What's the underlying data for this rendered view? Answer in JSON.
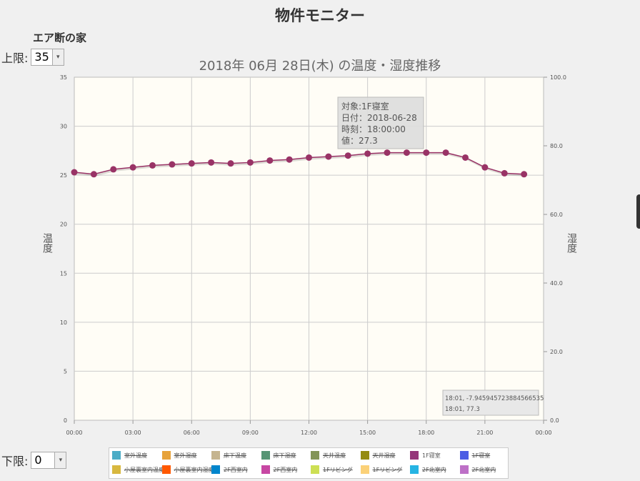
{
  "app_title": "物件モニター",
  "house_name": "エア断の家",
  "upper_limit": {
    "label": "上限:",
    "value": "35"
  },
  "lower_limit": {
    "label": "下限:",
    "value": "0"
  },
  "chart_data": {
    "type": "line",
    "title": "2018年 06月 28日(木) の温度・湿度推移",
    "ylabel_left": "温度",
    "ylabel_right": "湿度",
    "x_ticks": [
      "00:00",
      "03:00",
      "06:00",
      "09:00",
      "12:00",
      "15:00",
      "18:00",
      "21:00",
      "00:00"
    ],
    "y_left_ticks": [
      "0",
      "5",
      "10",
      "15",
      "20",
      "25",
      "30",
      "35"
    ],
    "y_right_ticks": [
      "0.0",
      "20.0",
      "40.0",
      "60.0",
      "80.0",
      "100.0"
    ],
    "ylim_left": [
      0,
      35
    ],
    "ylim_right": [
      0,
      100
    ],
    "xlim_hours": [
      0,
      24
    ],
    "grid": true,
    "series": [
      {
        "name": "1F寝室",
        "color": "#993366",
        "x": [
          0,
          1,
          2,
          3,
          4,
          5,
          6,
          7,
          8,
          9,
          10,
          11,
          12,
          13,
          14,
          15,
          16,
          17,
          18,
          19,
          20,
          21,
          22,
          23
        ],
        "values": [
          25.3,
          25.1,
          25.6,
          25.8,
          26.0,
          26.1,
          26.2,
          26.3,
          26.2,
          26.3,
          26.5,
          26.6,
          26.8,
          26.9,
          27.0,
          27.2,
          27.3,
          27.3,
          27.3,
          27.3,
          26.8,
          25.8,
          25.2,
          25.1
        ]
      }
    ],
    "tooltip": {
      "line1": "対象:1F寝室",
      "line2": "日付：2018-06-28",
      "line3": "時刻：18:00:00",
      "line4": "値：27.3"
    },
    "cursor_box": {
      "line1": "18:01, -7.945945723884566535",
      "line2": "18:01, 77.3"
    },
    "legend": [
      {
        "label": "室外温度",
        "color": "#4bacc6",
        "active": false
      },
      {
        "label": "室外湿度",
        "color": "#e7a23a",
        "active": false
      },
      {
        "label": "床下温度",
        "color": "#c5b48f",
        "active": false
      },
      {
        "label": "床下湿度",
        "color": "#579575",
        "active": false
      },
      {
        "label": "天井温度",
        "color": "#839557",
        "active": false
      },
      {
        "label": "天井湿度",
        "color": "#958c12",
        "active": false
      },
      {
        "label": "1F寝室",
        "color": "#953579",
        "active": true
      },
      {
        "label": "1F寝室",
        "color": "#4b5de4",
        "active": false
      },
      {
        "label": "小屋裏室内温度",
        "color": "#d8b83f",
        "active": false
      },
      {
        "label": "小屋裏室内湿度",
        "color": "#ff5800",
        "active": false
      },
      {
        "label": "2F西室内",
        "color": "#0085cc",
        "active": false
      },
      {
        "label": "2F西室内",
        "color": "#c747a3",
        "active": false
      },
      {
        "label": "1Fリビング",
        "color": "#cddf54",
        "active": false
      },
      {
        "label": "1Fリビング",
        "color": "#fbd178",
        "active": false
      },
      {
        "label": "2F北室内",
        "color": "#26b4e3",
        "active": false
      },
      {
        "label": "2F北室内",
        "color": "#bd70c7",
        "active": false
      }
    ]
  }
}
